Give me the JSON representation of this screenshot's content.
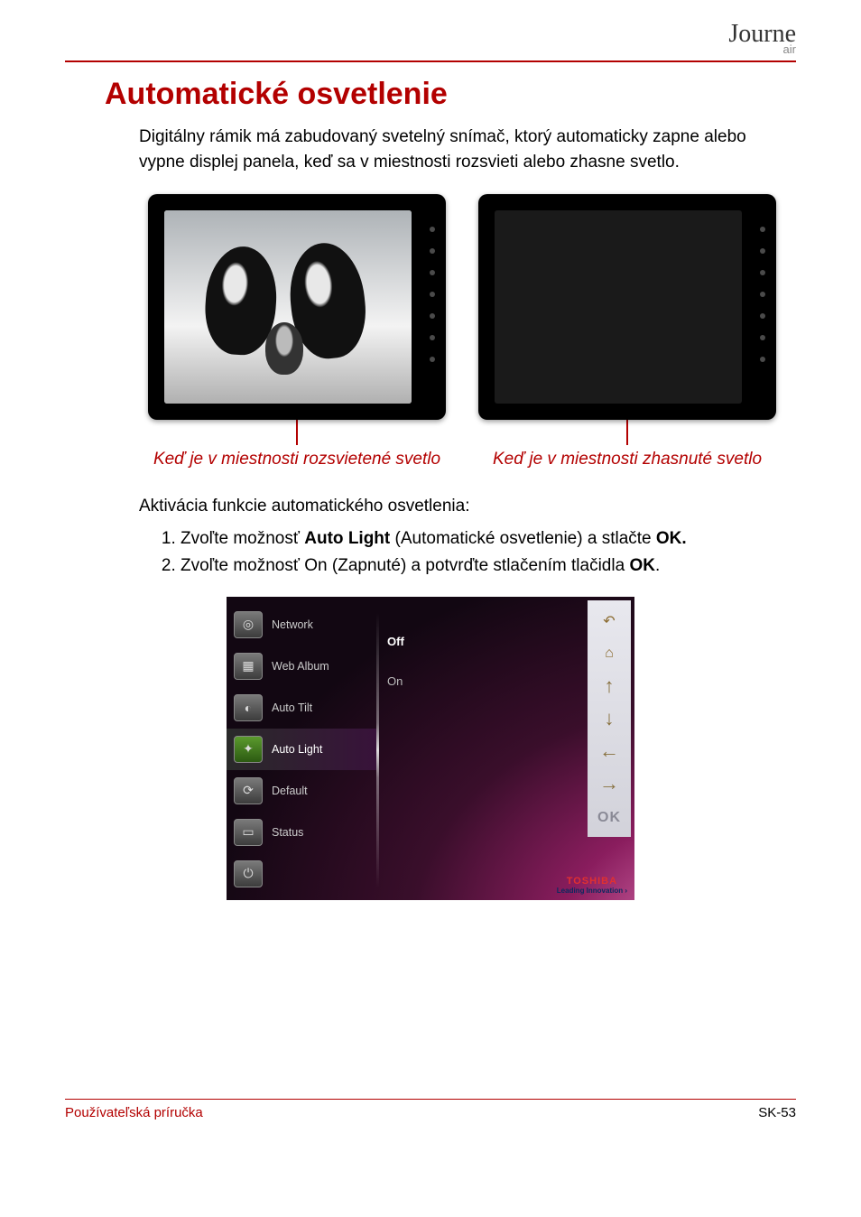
{
  "colors": {
    "accent": "#b30000",
    "text": "#000000",
    "bg": "#ffffff",
    "menu_bg_gradient": [
      "#e37ab8",
      "#8a1d5e",
      "#3a0e2b",
      "#120712"
    ],
    "nav_panel": "#d8d8e0",
    "nav_arrow": "#8a6a2e",
    "brand_red": "#e03030",
    "brand_blue": "#0a2a60"
  },
  "logo": {
    "main": "Journe",
    "sub": "air"
  },
  "heading": "Automatické osvetlenie",
  "intro": "Digitálny rámik má zabudovaný svetelný snímač, ktorý automaticky zapne alebo vypne displej panela, keď sa v miestnosti rozsvieti alebo zhasne svetlo.",
  "frames": {
    "left_caption": "Keď je v miestnosti rozsvietené svetlo",
    "right_caption": "Keď je v miestnosti zhasnuté svetlo",
    "side_dot_count": 7
  },
  "activation_label": "Aktivácia funkcie automatického osvetlenia:",
  "steps": [
    {
      "pre": "Zvoľte možnosť ",
      "bold": "Auto Light",
      "mid": " (Automatické osvetlenie) a stlačte ",
      "bold2": "OK.",
      "post": ""
    },
    {
      "pre": "Zvoľte možnosť On (Zapnuté) a potvrďte stlačením tlačidla ",
      "bold": "OK",
      "mid": ".",
      "bold2": "",
      "post": ""
    }
  ],
  "menu": {
    "items": [
      {
        "label": "Network",
        "icon": "network-icon"
      },
      {
        "label": "Web Album",
        "icon": "web-album-icon"
      },
      {
        "label": "Auto Tilt",
        "icon": "auto-tilt-icon"
      },
      {
        "label": "Auto Light",
        "icon": "auto-light-icon",
        "selected": true
      },
      {
        "label": "Default",
        "icon": "default-icon"
      },
      {
        "label": "Status",
        "icon": "status-icon"
      }
    ],
    "extra_icon": "power-icon",
    "options": [
      {
        "label": "Off",
        "selected": true
      },
      {
        "label": "On",
        "selected": false
      }
    ],
    "nav": {
      "back": "↶",
      "home": "⌂",
      "up": "↑",
      "down": "↓",
      "left": "←",
      "right": "→",
      "ok": "OK"
    },
    "brand": {
      "name": "TOSHIBA",
      "tag": "Leading Innovation  ›"
    }
  },
  "footer": {
    "left": "Používateľská príručka",
    "right": "SK-53"
  }
}
